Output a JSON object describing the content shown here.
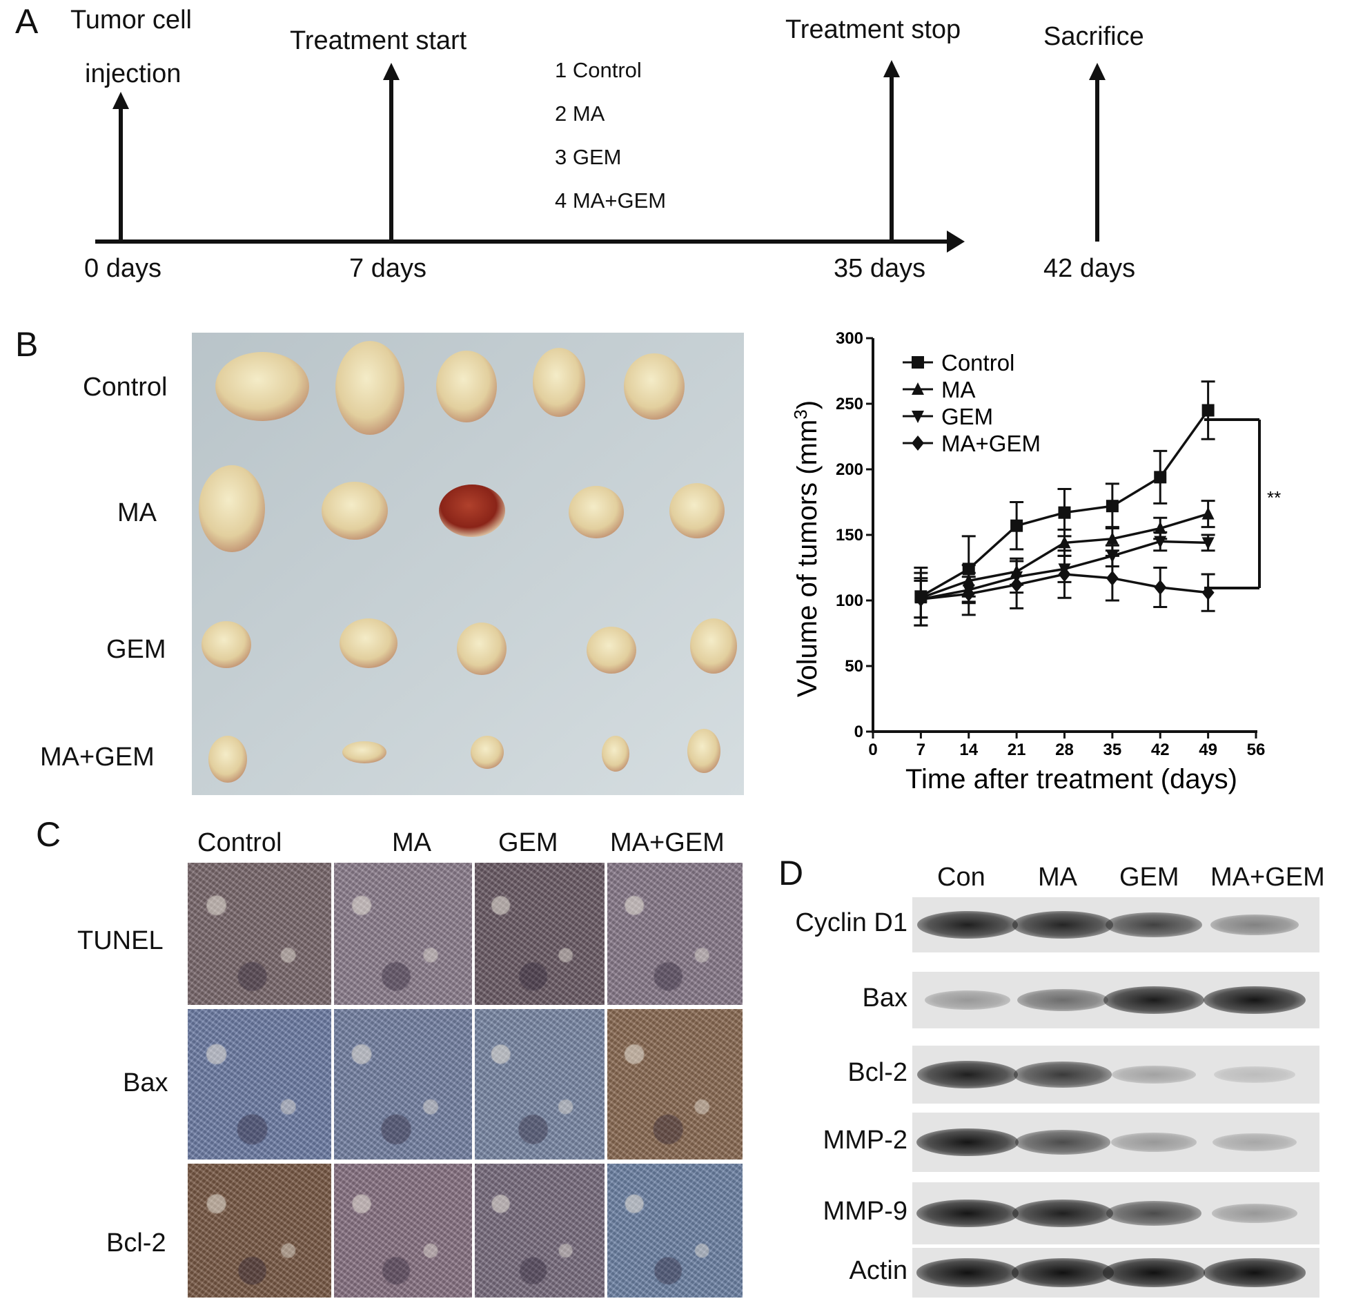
{
  "panel_a": {
    "letter": "A",
    "events": {
      "injection_line1": "Tumor cell",
      "injection_line2": "injection",
      "start": "Treatment start",
      "stop": "Treatment stop",
      "sacrifice": "Sacrifice"
    },
    "groups": [
      "1 Control",
      "2 MA",
      "3 GEM",
      "4 MA+GEM"
    ],
    "timepoints": [
      "0 days",
      "7 days",
      "35 days",
      "42 days"
    ]
  },
  "panel_b": {
    "letter": "B",
    "row_labels": [
      "Control",
      "MA",
      "GEM",
      "MA+GEM"
    ],
    "significance": "**"
  },
  "panel_c": {
    "letter": "C",
    "col_labels": [
      "Control",
      "MA",
      "GEM",
      "MA+GEM"
    ],
    "row_labels": [
      "TUNEL",
      "Bax",
      "Bcl-2"
    ]
  },
  "panel_d": {
    "letter": "D",
    "col_labels": [
      "Con",
      "MA",
      "GEM",
      "MA+GEM"
    ],
    "row_labels": [
      "Cyclin D1",
      "Bax",
      "Bcl-2",
      "MMP-2",
      "MMP-9",
      "Actin"
    ],
    "band_intensity": [
      [
        0.9,
        0.88,
        0.75,
        0.45
      ],
      [
        0.35,
        0.55,
        0.92,
        0.95
      ],
      [
        0.9,
        0.78,
        0.3,
        0.18
      ],
      [
        0.95,
        0.7,
        0.35,
        0.28
      ],
      [
        0.95,
        0.9,
        0.7,
        0.35
      ],
      [
        0.97,
        0.97,
        0.97,
        0.97
      ]
    ]
  },
  "chart_data": {
    "type": "line",
    "title": "",
    "xlabel": "Time after treatment (days)",
    "ylabel": "Volume of tumors (mm³)",
    "ylabel_main": "Volume of tumors (mm",
    "ylabel_sup": "3",
    "ylabel_close": ")",
    "xlim": [
      0,
      56
    ],
    "ylim": [
      0,
      300
    ],
    "xticks": [
      0,
      7,
      14,
      21,
      28,
      35,
      42,
      49,
      56
    ],
    "yticks": [
      0,
      50,
      100,
      150,
      200,
      250,
      300
    ],
    "x": [
      7,
      14,
      21,
      28,
      35,
      42,
      49
    ],
    "legend_position": "top-left",
    "series": [
      {
        "name": "Control",
        "marker": "square",
        "values": [
          103,
          124,
          157,
          167,
          172,
          194,
          245
        ],
        "errors": [
          22,
          25,
          18,
          18,
          17,
          20,
          22
        ]
      },
      {
        "name": "MA",
        "marker": "triangle-up",
        "values": [
          102,
          115,
          122,
          144,
          147,
          155,
          166
        ],
        "errors": [
          15,
          12,
          10,
          10,
          9,
          8,
          10
        ]
      },
      {
        "name": "GEM",
        "marker": "triangle-down",
        "values": [
          101,
          108,
          118,
          124,
          134,
          145,
          144
        ],
        "errors": [
          14,
          10,
          12,
          10,
          8,
          7,
          6
        ]
      },
      {
        "name": "MA+GEM",
        "marker": "diamond",
        "values": [
          101,
          105,
          112,
          120,
          117,
          110,
          106
        ],
        "errors": [
          20,
          16,
          18,
          18,
          17,
          15,
          14
        ]
      }
    ]
  }
}
